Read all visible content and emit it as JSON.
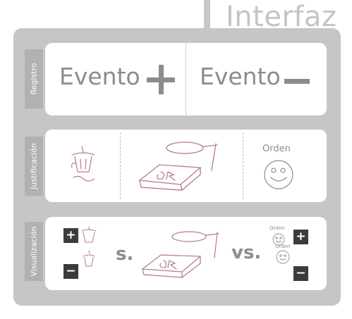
{
  "title": "Interfaz",
  "sections": {
    "registro": {
      "label": "Registro",
      "event_plus": "Evento",
      "event_minus": "Evento"
    },
    "justificacion": {
      "label": "Justificación",
      "sketch_orden": "Orden"
    },
    "visualizacion": {
      "label": "Visualización",
      "vs_1": "s.",
      "vs_2": "vs.",
      "plus_label": "+",
      "minus_label": "−",
      "mini_orden_1": "Orden",
      "mini_orden_2": "Orden"
    }
  },
  "colors": {
    "panel": "#c6c6c6",
    "tab": "#b1b1b1",
    "text_gray": "#8c8c8c",
    "sketch": "#b47a90",
    "button": "#3c3c3c"
  },
  "icons": [
    "plus-icon",
    "minus-icon",
    "cup-sketch",
    "ticket-sketch",
    "smiley-sketch"
  ]
}
